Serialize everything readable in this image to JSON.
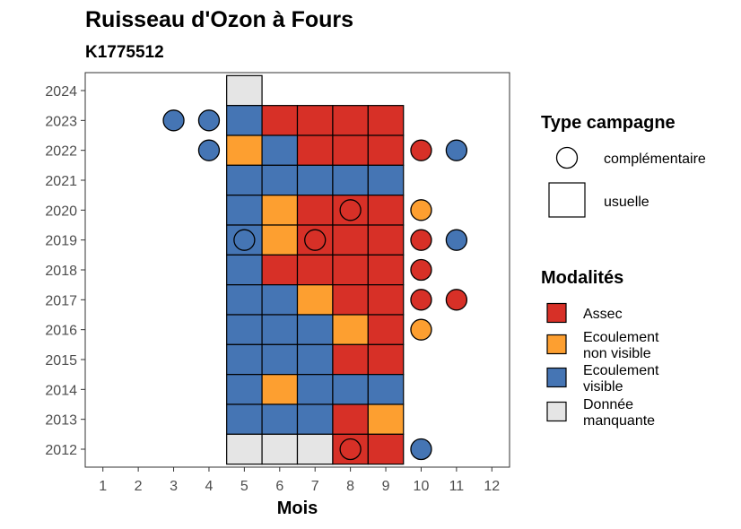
{
  "chart_data": {
    "type": "heatmap",
    "title": "Ruisseau d'Ozon à Fours",
    "subtitle": "K1775512",
    "xlabel": "Mois",
    "ylabel": "",
    "x_ticks": [
      1,
      2,
      3,
      4,
      5,
      6,
      7,
      8,
      9,
      10,
      11,
      12
    ],
    "y_ticks": [
      2012,
      2013,
      2014,
      2015,
      2016,
      2017,
      2018,
      2019,
      2020,
      2021,
      2022,
      2023,
      2024
    ],
    "xlim": [
      0.5,
      12.5
    ],
    "ylim": [
      2011.4,
      2024.6
    ],
    "grid": false,
    "colors": {
      "Assec": "#d73027",
      "Ecoulement non visible": "#fd9f30",
      "Ecoulement visible": "#4575b4",
      "Donnée manquante": "#e5e5e5"
    },
    "legend": {
      "type_title": "Type campagne",
      "type_entries": [
        {
          "key": "complementaire",
          "label": "complémentaire",
          "shape": "circle"
        },
        {
          "key": "usuelle",
          "label": "usuelle",
          "shape": "square"
        }
      ],
      "modalites_title": "Modalités",
      "modalites_entries": [
        {
          "key": "Assec",
          "lines": [
            "Assec"
          ]
        },
        {
          "key": "Ecoulement non visible",
          "lines": [
            "Ecoulement",
            "non visible"
          ]
        },
        {
          "key": "Ecoulement visible",
          "lines": [
            "Ecoulement",
            "visible"
          ]
        },
        {
          "key": "Donnée manquante",
          "lines": [
            "Donnée",
            "manquante"
          ]
        }
      ]
    },
    "usuelle": [
      {
        "year": 2024,
        "month": 5,
        "modalite": "Donnée manquante"
      },
      {
        "year": 2023,
        "month": 5,
        "modalite": "Ecoulement visible"
      },
      {
        "year": 2023,
        "month": 6,
        "modalite": "Assec"
      },
      {
        "year": 2023,
        "month": 7,
        "modalite": "Assec"
      },
      {
        "year": 2023,
        "month": 8,
        "modalite": "Assec"
      },
      {
        "year": 2023,
        "month": 9,
        "modalite": "Assec"
      },
      {
        "year": 2022,
        "month": 5,
        "modalite": "Ecoulement non visible"
      },
      {
        "year": 2022,
        "month": 6,
        "modalite": "Ecoulement visible"
      },
      {
        "year": 2022,
        "month": 7,
        "modalite": "Assec"
      },
      {
        "year": 2022,
        "month": 8,
        "modalite": "Assec"
      },
      {
        "year": 2022,
        "month": 9,
        "modalite": "Assec"
      },
      {
        "year": 2021,
        "month": 5,
        "modalite": "Ecoulement visible"
      },
      {
        "year": 2021,
        "month": 6,
        "modalite": "Ecoulement visible"
      },
      {
        "year": 2021,
        "month": 7,
        "modalite": "Ecoulement visible"
      },
      {
        "year": 2021,
        "month": 8,
        "modalite": "Ecoulement visible"
      },
      {
        "year": 2021,
        "month": 9,
        "modalite": "Ecoulement visible"
      },
      {
        "year": 2020,
        "month": 5,
        "modalite": "Ecoulement visible"
      },
      {
        "year": 2020,
        "month": 6,
        "modalite": "Ecoulement non visible"
      },
      {
        "year": 2020,
        "month": 7,
        "modalite": "Assec"
      },
      {
        "year": 2020,
        "month": 8,
        "modalite": "Assec"
      },
      {
        "year": 2020,
        "month": 9,
        "modalite": "Assec"
      },
      {
        "year": 2019,
        "month": 5,
        "modalite": "Ecoulement visible"
      },
      {
        "year": 2019,
        "month": 6,
        "modalite": "Ecoulement non visible"
      },
      {
        "year": 2019,
        "month": 7,
        "modalite": "Assec"
      },
      {
        "year": 2019,
        "month": 8,
        "modalite": "Assec"
      },
      {
        "year": 2019,
        "month": 9,
        "modalite": "Assec"
      },
      {
        "year": 2018,
        "month": 5,
        "modalite": "Ecoulement visible"
      },
      {
        "year": 2018,
        "month": 6,
        "modalite": "Assec"
      },
      {
        "year": 2018,
        "month": 7,
        "modalite": "Assec"
      },
      {
        "year": 2018,
        "month": 8,
        "modalite": "Assec"
      },
      {
        "year": 2018,
        "month": 9,
        "modalite": "Assec"
      },
      {
        "year": 2017,
        "month": 5,
        "modalite": "Ecoulement visible"
      },
      {
        "year": 2017,
        "month": 6,
        "modalite": "Ecoulement visible"
      },
      {
        "year": 2017,
        "month": 7,
        "modalite": "Ecoulement non visible"
      },
      {
        "year": 2017,
        "month": 8,
        "modalite": "Assec"
      },
      {
        "year": 2017,
        "month": 9,
        "modalite": "Assec"
      },
      {
        "year": 2016,
        "month": 5,
        "modalite": "Ecoulement visible"
      },
      {
        "year": 2016,
        "month": 6,
        "modalite": "Ecoulement visible"
      },
      {
        "year": 2016,
        "month": 7,
        "modalite": "Ecoulement visible"
      },
      {
        "year": 2016,
        "month": 8,
        "modalite": "Ecoulement non visible"
      },
      {
        "year": 2016,
        "month": 9,
        "modalite": "Assec"
      },
      {
        "year": 2015,
        "month": 5,
        "modalite": "Ecoulement visible"
      },
      {
        "year": 2015,
        "month": 6,
        "modalite": "Ecoulement visible"
      },
      {
        "year": 2015,
        "month": 7,
        "modalite": "Ecoulement visible"
      },
      {
        "year": 2015,
        "month": 8,
        "modalite": "Assec"
      },
      {
        "year": 2015,
        "month": 9,
        "modalite": "Assec"
      },
      {
        "year": 2014,
        "month": 5,
        "modalite": "Ecoulement visible"
      },
      {
        "year": 2014,
        "month": 6,
        "modalite": "Ecoulement non visible"
      },
      {
        "year": 2014,
        "month": 7,
        "modalite": "Ecoulement visible"
      },
      {
        "year": 2014,
        "month": 8,
        "modalite": "Ecoulement visible"
      },
      {
        "year": 2014,
        "month": 9,
        "modalite": "Ecoulement visible"
      },
      {
        "year": 2013,
        "month": 5,
        "modalite": "Ecoulement visible"
      },
      {
        "year": 2013,
        "month": 6,
        "modalite": "Ecoulement visible"
      },
      {
        "year": 2013,
        "month": 7,
        "modalite": "Ecoulement visible"
      },
      {
        "year": 2013,
        "month": 8,
        "modalite": "Assec"
      },
      {
        "year": 2013,
        "month": 9,
        "modalite": "Ecoulement non visible"
      },
      {
        "year": 2012,
        "month": 5,
        "modalite": "Donnée manquante"
      },
      {
        "year": 2012,
        "month": 6,
        "modalite": "Donnée manquante"
      },
      {
        "year": 2012,
        "month": 7,
        "modalite": "Donnée manquante"
      },
      {
        "year": 2012,
        "month": 8,
        "modalite": "Assec"
      },
      {
        "year": 2012,
        "month": 9,
        "modalite": "Assec"
      }
    ],
    "complementaire": [
      {
        "year": 2023,
        "month": 3,
        "modalite": "Ecoulement visible"
      },
      {
        "year": 2023,
        "month": 4,
        "modalite": "Ecoulement visible"
      },
      {
        "year": 2022,
        "month": 4,
        "modalite": "Ecoulement visible"
      },
      {
        "year": 2022,
        "month": 10,
        "modalite": "Assec"
      },
      {
        "year": 2022,
        "month": 11,
        "modalite": "Ecoulement visible"
      },
      {
        "year": 2020,
        "month": 8,
        "modalite": "Assec"
      },
      {
        "year": 2020,
        "month": 10,
        "modalite": "Ecoulement non visible"
      },
      {
        "year": 2019,
        "month": 5,
        "modalite": "Ecoulement visible"
      },
      {
        "year": 2019,
        "month": 7,
        "modalite": "Assec"
      },
      {
        "year": 2019,
        "month": 10,
        "modalite": "Assec"
      },
      {
        "year": 2019,
        "month": 11,
        "modalite": "Ecoulement visible"
      },
      {
        "year": 2018,
        "month": 10,
        "modalite": "Assec"
      },
      {
        "year": 2017,
        "month": 10,
        "modalite": "Assec"
      },
      {
        "year": 2017,
        "month": 11,
        "modalite": "Assec"
      },
      {
        "year": 2016,
        "month": 10,
        "modalite": "Ecoulement non visible"
      },
      {
        "year": 2012,
        "month": 8,
        "modalite": "Assec"
      },
      {
        "year": 2012,
        "month": 10,
        "modalite": "Ecoulement visible"
      }
    ]
  }
}
